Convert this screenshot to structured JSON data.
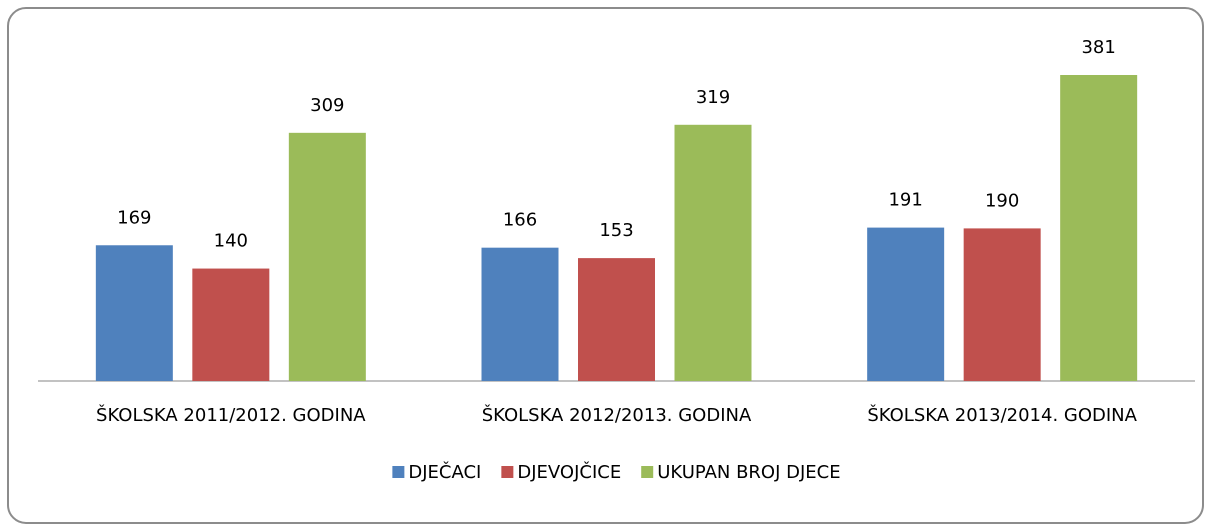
{
  "chart_data": {
    "type": "bar",
    "categories": [
      "ŠKOLSKA 2011/2012. GODINA",
      "ŠKOLSKA 2012/2013. GODINA",
      "ŠKOLSKA 2013/2014. GODINA"
    ],
    "series": [
      {
        "name": "DJEČACI",
        "color": "#4f81bd",
        "values": [
          169,
          166,
          191
        ]
      },
      {
        "name": "DJEVOJČICE",
        "color": "#c0504d",
        "values": [
          140,
          153,
          190
        ]
      },
      {
        "name": "UKUPAN BROJ DJECE",
        "color": "#9bbb59",
        "values": [
          309,
          319,
          381
        ]
      }
    ],
    "legend": "bottom"
  }
}
